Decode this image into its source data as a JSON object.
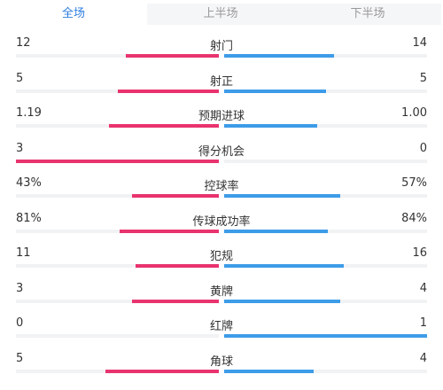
{
  "tabs": [
    {
      "label": "全场",
      "active": true
    },
    {
      "label": "上半场",
      "active": false
    },
    {
      "label": "下半场",
      "active": false
    }
  ],
  "colors": {
    "home": "#e8336e",
    "away": "#3d9ce8",
    "active_tab": "#2e7de1"
  },
  "stats": [
    {
      "label": "射门",
      "home": "12",
      "away": "14",
      "home_share": 0.46,
      "away_share": 0.54
    },
    {
      "label": "射正",
      "home": "5",
      "away": "5",
      "home_share": 0.5,
      "away_share": 0.5
    },
    {
      "label": "预期进球",
      "home": "1.19",
      "away": "1.00",
      "home_share": 0.54,
      "away_share": 0.46
    },
    {
      "label": "得分机会",
      "home": "3",
      "away": "0",
      "home_share": 1.0,
      "away_share": 0.0
    },
    {
      "label": "控球率",
      "home": "43%",
      "away": "57%",
      "home_share": 0.43,
      "away_share": 0.57
    },
    {
      "label": "传球成功率",
      "home": "81%",
      "away": "84%",
      "home_share": 0.49,
      "away_share": 0.51
    },
    {
      "label": "犯规",
      "home": "11",
      "away": "16",
      "home_share": 0.41,
      "away_share": 0.59
    },
    {
      "label": "黄牌",
      "home": "3",
      "away": "4",
      "home_share": 0.43,
      "away_share": 0.57
    },
    {
      "label": "红牌",
      "home": "0",
      "away": "1",
      "home_share": 0.0,
      "away_share": 1.0
    },
    {
      "label": "角球",
      "home": "5",
      "away": "4",
      "home_share": 0.56,
      "away_share": 0.44
    }
  ]
}
